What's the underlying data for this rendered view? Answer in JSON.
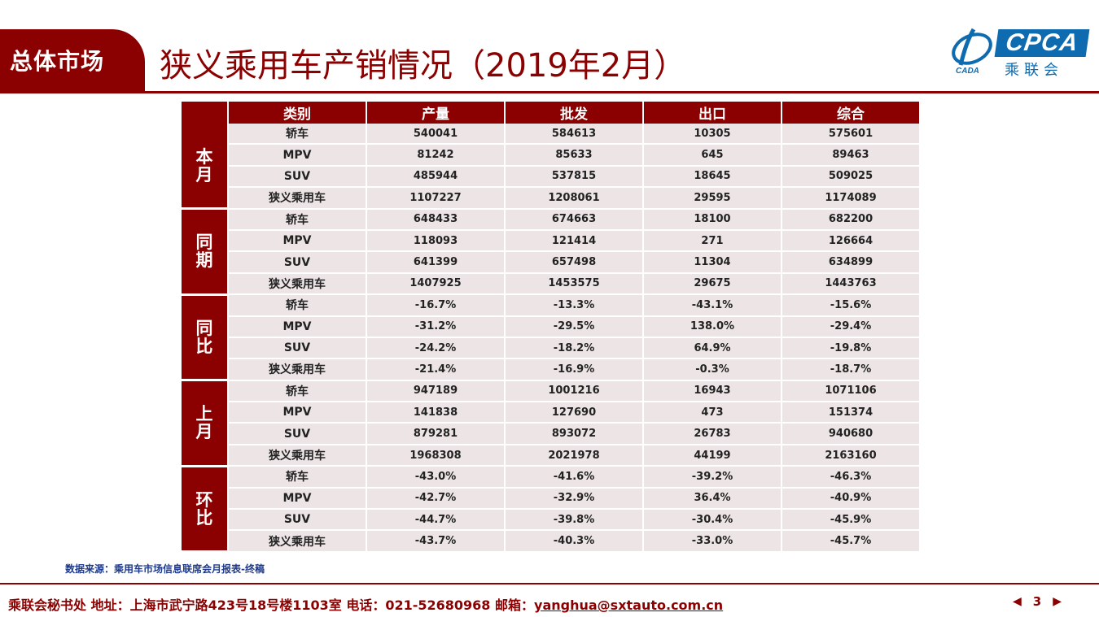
{
  "header": {
    "section_tag": "总体市场",
    "title": "狭义乘用车产销情况（2019年2月）",
    "logo": {
      "cpca": "CPCA",
      "cn": "乘联会",
      "emblem_text": "CADA"
    }
  },
  "table": {
    "columns": [
      "类别",
      "产量",
      "批发",
      "出口",
      "综合"
    ],
    "groups": [
      {
        "label_chars": [
          "本",
          "月"
        ],
        "rows": [
          [
            "轿车",
            "540041",
            "584613",
            "10305",
            "575601"
          ],
          [
            "MPV",
            "81242",
            "85633",
            "645",
            "89463"
          ],
          [
            "SUV",
            "485944",
            "537815",
            "18645",
            "509025"
          ],
          [
            "狭义乘用车",
            "1107227",
            "1208061",
            "29595",
            "1174089"
          ]
        ]
      },
      {
        "label_chars": [
          "同",
          "期"
        ],
        "rows": [
          [
            "轿车",
            "648433",
            "674663",
            "18100",
            "682200"
          ],
          [
            "MPV",
            "118093",
            "121414",
            "271",
            "126664"
          ],
          [
            "SUV",
            "641399",
            "657498",
            "11304",
            "634899"
          ],
          [
            "狭义乘用车",
            "1407925",
            "1453575",
            "29675",
            "1443763"
          ]
        ]
      },
      {
        "label_chars": [
          "同",
          "比"
        ],
        "rows": [
          [
            "轿车",
            "-16.7%",
            "-13.3%",
            "-43.1%",
            "-15.6%"
          ],
          [
            "MPV",
            "-31.2%",
            "-29.5%",
            "138.0%",
            "-29.4%"
          ],
          [
            "SUV",
            "-24.2%",
            "-18.2%",
            "64.9%",
            "-19.8%"
          ],
          [
            "狭义乘用车",
            "-21.4%",
            "-16.9%",
            "-0.3%",
            "-18.7%"
          ]
        ]
      },
      {
        "label_chars": [
          "上",
          "月"
        ],
        "rows": [
          [
            "轿车",
            "947189",
            "1001216",
            "16943",
            "1071106"
          ],
          [
            "MPV",
            "141838",
            "127690",
            "473",
            "151374"
          ],
          [
            "SUV",
            "879281",
            "893072",
            "26783",
            "940680"
          ],
          [
            "狭义乘用车",
            "1968308",
            "2021978",
            "44199",
            "2163160"
          ]
        ]
      },
      {
        "label_chars": [
          "环",
          "比"
        ],
        "rows": [
          [
            "轿车",
            "-43.0%",
            "-41.6%",
            "-39.2%",
            "-46.3%"
          ],
          [
            "MPV",
            "-42.7%",
            "-32.9%",
            "36.4%",
            "-40.9%"
          ],
          [
            "SUV",
            "-44.7%",
            "-39.8%",
            "-30.4%",
            "-45.9%"
          ],
          [
            "狭义乘用车",
            "-43.7%",
            "-40.3%",
            "-33.0%",
            "-45.7%"
          ]
        ]
      }
    ]
  },
  "source_note": "数据来源：乘用车市场信息联席会月报表-终稿",
  "footer": {
    "text": "乘联会秘书处   地址：上海市武宁路423号18号楼1103室  电话：021-52680968   邮箱：",
    "email": "yanghua@sxtauto.com.cn",
    "page_number": "3"
  },
  "colors": {
    "brand_red": "#8b0000",
    "cell_bg": "#ede5e5",
    "logo_blue": "#0f6bb0"
  }
}
